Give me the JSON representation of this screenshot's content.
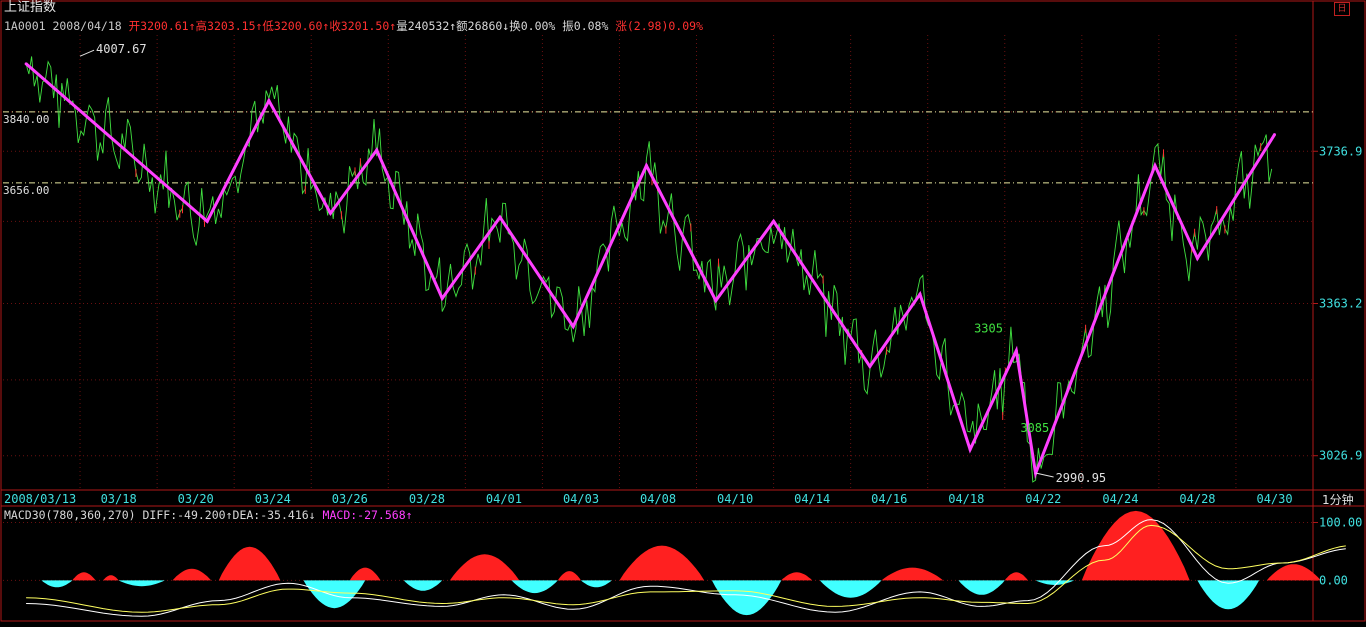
{
  "header": {
    "title": "上证指数",
    "code_date": "1A0001 2008/04/18",
    "open": "开3200.61↑",
    "high": "高3203.15↑",
    "low": "低3200.60↑",
    "close": "收3201.50↑",
    "volume": "量240532↑",
    "amount": "额26860↓",
    "turnover": "换0.00%",
    "amplitude": "振0.08%",
    "change": "涨(2.98)0.09%",
    "corner_icon": "日"
  },
  "macd_header": {
    "name": "MACD30(780,360,270)",
    "diff": "DIFF:-49.200↑",
    "dea": "DEA:-35.416↓",
    "macd": "MACD:-27.568↑"
  },
  "period_label": "1分钟",
  "colors": {
    "background": "#000000",
    "frame": "#b01818",
    "zigzag": "#ff40ff",
    "price": "#40e040",
    "macd_pos": "#ff2020",
    "macd_neg": "#40ffff",
    "diff_line": "#ffffff",
    "dea_line": "#ffff60",
    "level_line": "#e8e8a0"
  },
  "chart_data": [
    {
      "type": "line",
      "title": "上证指数",
      "categories": [
        "2008/03/13",
        "03/18",
        "03/20",
        "03/24",
        "03/26",
        "03/28",
        "04/01",
        "04/03",
        "04/08",
        "04/10",
        "04/14",
        "04/16",
        "04/18",
        "04/22",
        "04/24",
        "04/28",
        "04/30"
      ],
      "ylim": [
        2960,
        4050
      ],
      "log_scale": true,
      "y_ticks": [
        "3736.9",
        "3363.2",
        "3026.9"
      ],
      "level_lines": [
        {
          "label": "3840.00",
          "value": 3840
        },
        {
          "label": "3656.00",
          "value": 3656
        }
      ],
      "annotations": [
        {
          "text": "4007.67",
          "x": 0.7,
          "y": 4007.67
        },
        {
          "text": "3305",
          "x": 12.25,
          "y": 3305
        },
        {
          "text": "3085",
          "x": 12.85,
          "y": 3085
        },
        {
          "text": "2990.95",
          "x": 13.1,
          "y": 2990.95
        }
      ],
      "series": [
        {
          "name": "",
          "x": [
            0,
            2.35,
            3.15,
            3.95,
            4.55,
            5.4,
            6.15,
            7.1,
            8.05,
            8.95,
            9.7,
            10.95,
            11.6,
            12.25,
            12.85,
            13.1,
            14.65,
            15.2,
            16.2
          ],
          "values": [
            3970,
            3560,
            3870,
            3580,
            3740,
            3375,
            3570,
            3310,
            3700,
            3370,
            3560,
            3220,
            3385,
            3040,
            3255,
            2990,
            3700,
            3470,
            3780
          ]
        }
      ],
      "grid": true
    },
    {
      "type": "area",
      "title": "MACD30(780,360,270)",
      "y_ticks": [
        "100.00",
        "0.00"
      ],
      "ylim": [
        -65,
        125
      ],
      "categories_ref": "same as price chart",
      "histogram_blocks": [
        [
          0.6,
          0.9,
          14
        ],
        [
          1.0,
          1.2,
          9
        ],
        [
          1.9,
          2.4,
          20
        ],
        [
          2.5,
          3.3,
          58
        ],
        [
          4.2,
          4.6,
          22
        ],
        [
          5.5,
          6.4,
          45
        ],
        [
          6.9,
          7.2,
          16
        ],
        [
          7.7,
          8.8,
          60
        ],
        [
          9.8,
          10.2,
          14
        ],
        [
          11.1,
          11.9,
          22
        ],
        [
          12.7,
          13.0,
          14
        ],
        [
          13.7,
          15.1,
          120
        ],
        [
          16.1,
          16.8,
          28
        ],
        [
          0.2,
          0.6,
          -12
        ],
        [
          1.2,
          1.8,
          -10
        ],
        [
          3.6,
          4.4,
          -48
        ],
        [
          4.9,
          5.4,
          -18
        ],
        [
          6.3,
          6.9,
          -22
        ],
        [
          7.2,
          7.6,
          -12
        ],
        [
          8.9,
          9.8,
          -60
        ],
        [
          10.3,
          11.1,
          -30
        ],
        [
          12.1,
          12.7,
          -25
        ],
        [
          13.1,
          13.6,
          -8
        ],
        [
          15.2,
          16.0,
          -50
        ]
      ],
      "series": [
        {
          "name": "DIFF",
          "x": [
            0,
            1.5,
            2.5,
            3.4,
            4.2,
            5.4,
            6.2,
            7.1,
            8.1,
            9.2,
            10.5,
            11.6,
            12.4,
            13.0,
            14.0,
            14.6,
            15.6,
            16.3,
            17.2
          ],
          "values": [
            -40,
            -62,
            -35,
            -5,
            -30,
            -45,
            -25,
            -50,
            -10,
            -25,
            -55,
            -20,
            -45,
            -35,
            60,
            105,
            -5,
            30,
            55
          ]
        },
        {
          "name": "DEA",
          "x": [
            0,
            1.5,
            2.5,
            3.4,
            4.2,
            5.4,
            6.2,
            7.1,
            8.1,
            9.2,
            10.5,
            11.6,
            12.4,
            13.0,
            14.0,
            14.6,
            15.6,
            16.3,
            17.2
          ],
          "values": [
            -30,
            -55,
            -42,
            -15,
            -22,
            -40,
            -30,
            -42,
            -20,
            -18,
            -45,
            -30,
            -38,
            -40,
            35,
            95,
            20,
            30,
            60
          ]
        }
      ]
    }
  ]
}
